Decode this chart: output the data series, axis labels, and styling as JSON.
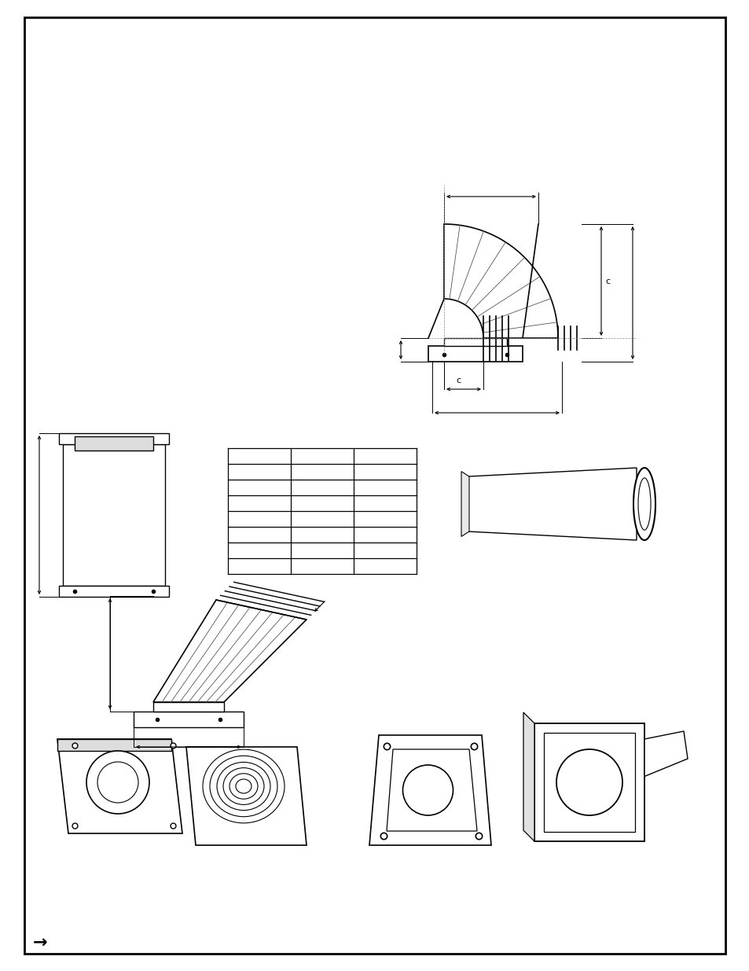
{
  "bg_color": "#ffffff",
  "border_color": "#000000",
  "line_color": "#000000",
  "dim_color": "#000000",
  "gray_color": "#888888",
  "light_gray": "#cccccc",
  "fig_w": 9.54,
  "fig_h": 12.35,
  "border": [
    0.032,
    0.018,
    0.936,
    0.964
  ],
  "arrow_symbol": "→"
}
